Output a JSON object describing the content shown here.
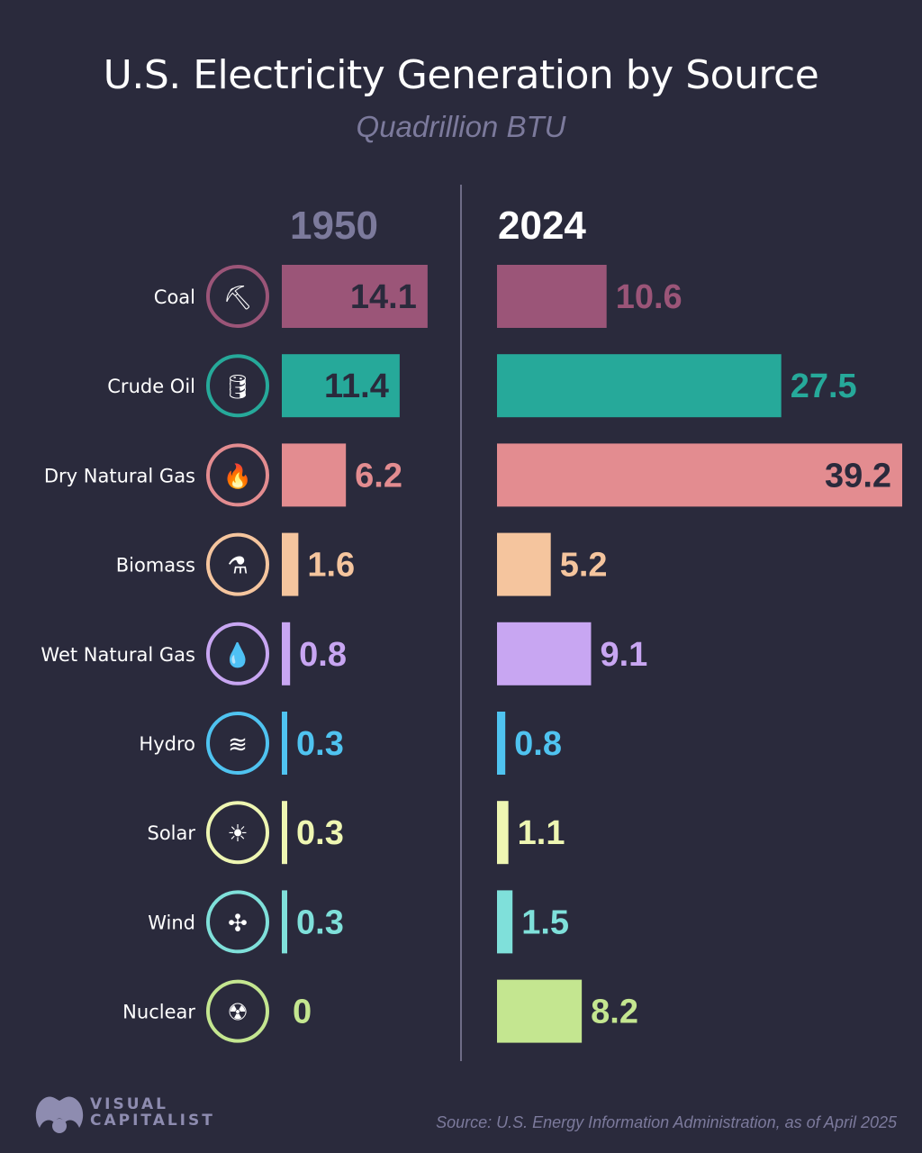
{
  "chart_data": {
    "type": "bar",
    "title": "U.S. Electricity Generation by Source",
    "subtitle": "Quadrillion BTU",
    "categories": [
      "Coal",
      "Crude Oil",
      "Dry Natural Gas",
      "Biomass",
      "Wet Natural Gas",
      "Hydro",
      "Solar",
      "Wind",
      "Nuclear"
    ],
    "series": [
      {
        "name": "1950",
        "values": [
          14.1,
          11.4,
          6.2,
          1.6,
          0.8,
          0.3,
          0.3,
          0.3,
          0
        ]
      },
      {
        "name": "2024",
        "values": [
          10.6,
          27.5,
          39.2,
          5.2,
          9.1,
          0.8,
          1.1,
          1.5,
          8.2
        ]
      }
    ],
    "value_labels": {
      "1950": [
        "14.1",
        "11.4",
        "6.2",
        "1.6",
        "0.8",
        "0.3",
        "0.3",
        "0.3",
        "0"
      ],
      "2024": [
        "10.6",
        "27.5",
        "39.2",
        "5.2",
        "9.1",
        "0.8",
        "1.1",
        "1.5",
        "8.2"
      ]
    },
    "orientation": "horizontal",
    "layout": "side-by-side panels",
    "grid": false,
    "colors": [
      "#9b5578",
      "#26a99a",
      "#e38c90",
      "#f5c59e",
      "#c8a6f2",
      "#4fc3f0",
      "#eef6b2",
      "#7fe0da",
      "#c4e690"
    ],
    "icons": [
      "coal-cart-icon",
      "oil-barrel-icon",
      "flame-icon",
      "flask-icon",
      "droplet-icon",
      "dam-icon",
      "solar-panel-icon",
      "wind-turbine-icon",
      "nuclear-plant-icon"
    ]
  },
  "footer": {
    "brand": "VISUAL CAPITALIST",
    "brand_line1": "VISUAL",
    "brand_line2": "CAPITALIST",
    "source": "Source: U.S. Energy Information Administration, as of April 2025"
  },
  "background": "#2a2a3c"
}
